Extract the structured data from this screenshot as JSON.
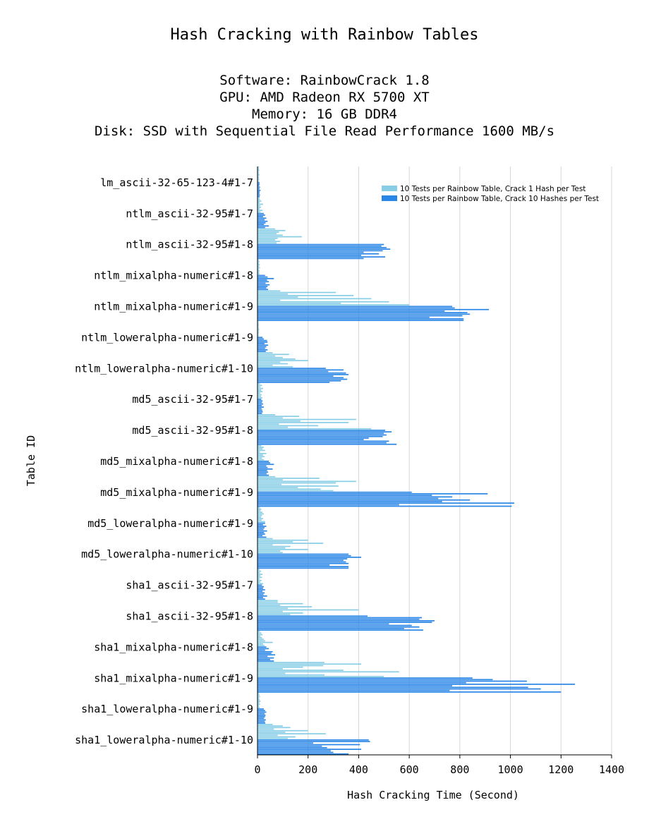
{
  "chart_data": {
    "type": "bar",
    "orientation": "horizontal",
    "title": "Hash Cracking with Rainbow Tables",
    "subtitle_lines": [
      "Software: RainbowCrack 1.8",
      "GPU: AMD Radeon RX 5700 XT",
      "Memory: 16 GB DDR4",
      "Disk: SSD with Sequential File Read Performance 1600 MB/s"
    ],
    "xlabel": "Hash Cracking Time (Second)",
    "ylabel": "Table ID",
    "xlim": [
      0,
      1400
    ],
    "xticks": [
      0,
      200,
      400,
      600,
      800,
      1000,
      1200,
      1400
    ],
    "grid": "vertical",
    "legend_position": "top-right",
    "colors": {
      "series1": "#87cde6",
      "series2": "#2a86e6"
    },
    "categories": [
      {
        "label": "lm_ascii-32-65-123-4#1-7",
        "s1": [
          6,
          5,
          7,
          5,
          6,
          8,
          5,
          6,
          7,
          5
        ],
        "s2": [
          8,
          9,
          7,
          10,
          8,
          12,
          9,
          8,
          10,
          9
        ]
      },
      {
        "label": "ntlm_ascii-32-95#1-7",
        "s1": [
          8,
          10,
          15,
          9,
          22,
          11,
          14,
          9,
          20,
          12
        ],
        "s2": [
          25,
          30,
          22,
          35,
          28,
          40,
          32,
          26,
          45,
          30
        ]
      },
      {
        "label": "ntlm_ascii-32-95#1-8",
        "s1": [
          70,
          110,
          85,
          75,
          100,
          175,
          80,
          70,
          90,
          75
        ],
        "s2": [
          500,
          490,
          510,
          525,
          495,
          420,
          480,
          410,
          505,
          420
        ]
      },
      {
        "label": "ntlm_mixalpha-numeric#1-8",
        "s1": [
          5,
          8,
          6,
          9,
          7,
          10,
          6,
          8,
          7,
          9
        ],
        "s2": [
          30,
          40,
          65,
          38,
          45,
          32,
          48,
          40,
          35,
          42
        ]
      },
      {
        "label": "ntlm_mixalpha-numeric#1-9",
        "s1": [
          90,
          310,
          120,
          380,
          160,
          450,
          90,
          520,
          330,
          600
        ],
        "s2": [
          770,
          780,
          915,
          740,
          830,
          840,
          810,
          680,
          815,
          815
        ]
      },
      {
        "label": "ntlm_loweralpha-numeric#1-9",
        "s1": [
          4,
          5,
          6,
          4,
          5,
          7,
          5,
          6,
          4,
          5
        ],
        "s2": [
          20,
          25,
          38,
          40,
          28,
          42,
          35,
          30,
          40,
          33
        ]
      },
      {
        "label": "ntlm_loweralpha-numeric#1-10",
        "s1": [
          60,
          125,
          70,
          100,
          150,
          200,
          90,
          120,
          60,
          140
        ],
        "s2": [
          270,
          340,
          280,
          350,
          360,
          300,
          340,
          355,
          330,
          285
        ]
      },
      {
        "label": "md5_ascii-32-95#1-7",
        "s1": [
          10,
          18,
          12,
          22,
          15,
          20,
          11,
          16,
          14,
          19
        ],
        "s2": [
          15,
          20,
          18,
          22,
          17,
          25,
          16,
          19,
          21,
          18
        ]
      },
      {
        "label": "md5_ascii-32-95#1-8",
        "s1": [
          70,
          165,
          100,
          390,
          170,
          360,
          85,
          240,
          120,
          450
        ],
        "s2": [
          505,
          530,
          500,
          510,
          495,
          440,
          420,
          520,
          510,
          550
        ]
      },
      {
        "label": "md5_mixalpha-numeric#1-8",
        "s1": [
          15,
          25,
          20,
          30,
          10,
          35,
          22,
          28,
          18,
          26
        ],
        "s2": [
          45,
          50,
          65,
          35,
          40,
          60,
          38,
          42,
          36,
          45
        ]
      },
      {
        "label": "md5_mixalpha-numeric#1-9",
        "s1": [
          70,
          245,
          100,
          390,
          310,
          95,
          320,
          160,
          250,
          300
        ],
        "s2": [
          610,
          910,
          690,
          770,
          715,
          840,
          730,
          1015,
          560,
          1005
        ]
      },
      {
        "label": "md5_loweralpha-numeric#1-9",
        "s1": [
          10,
          15,
          12,
          20,
          25,
          18,
          14,
          22,
          16,
          30
        ],
        "s2": [
          30,
          22,
          35,
          28,
          24,
          38,
          26,
          30,
          20,
          35
        ]
      },
      {
        "label": "md5_loweralpha-numeric#1-10",
        "s1": [
          60,
          200,
          140,
          260,
          60,
          130,
          110,
          200,
          90,
          100
        ],
        "s2": [
          360,
          370,
          410,
          355,
          340,
          350,
          360,
          285,
          360,
          360
        ]
      },
      {
        "label": "sha1_ascii-32-95#1-7",
        "s1": [
          8,
          14,
          10,
          20,
          12,
          18,
          9,
          16,
          11,
          22
        ],
        "s2": [
          18,
          25,
          22,
          30,
          20,
          28,
          24,
          38,
          22,
          30
        ]
      },
      {
        "label": "sha1_ascii-32-95#1-8",
        "s1": [
          80,
          80,
          180,
          90,
          215,
          120,
          400,
          100,
          180,
          130
        ],
        "s2": [
          435,
          650,
          640,
          700,
          690,
          520,
          610,
          640,
          580,
          655
        ]
      },
      {
        "label": "sha1_mixalpha-numeric#1-8",
        "s1": [
          10,
          15,
          20,
          12,
          18,
          25,
          30,
          60,
          22,
          28
        ],
        "s2": [
          35,
          45,
          30,
          60,
          55,
          70,
          40,
          65,
          50,
          65
        ]
      },
      {
        "label": "sha1_mixalpha-numeric#1-9",
        "s1": [
          265,
          410,
          260,
          180,
          100,
          340,
          560,
          110,
          265,
          500
        ],
        "s2": [
          850,
          930,
          1065,
          825,
          1255,
          770,
          1070,
          1120,
          760,
          1200
        ]
      },
      {
        "label": "sha1_loweralpha-numeric#1-9",
        "s1": [
          6,
          8,
          10,
          7,
          9,
          12,
          8,
          10,
          6,
          9
        ],
        "s2": [
          25,
          30,
          35,
          28,
          32,
          30,
          26,
          33,
          29,
          31
        ]
      },
      {
        "label": "sha1_loweralpha-numeric#1-10",
        "s1": [
          60,
          100,
          130,
          65,
          200,
          110,
          270,
          80,
          150,
          120
        ],
        "s2": [
          440,
          445,
          220,
          405,
          255,
          275,
          410,
          290,
          300,
          360
        ]
      }
    ],
    "series": [
      {
        "name": "10 Tests per Rainbow Table, Crack 1 Hash per Test",
        "key": "s1"
      },
      {
        "name": "10 Tests per Rainbow Table, Crack 10 Hashes per Test",
        "key": "s2"
      }
    ]
  }
}
